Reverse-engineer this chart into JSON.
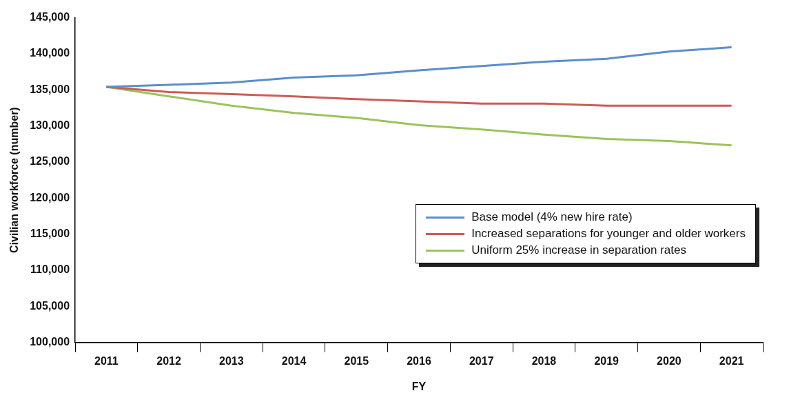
{
  "chart_data": {
    "type": "line",
    "xlabel": "FY",
    "ylabel": "Civilian workforce (number)",
    "categories": [
      "2011",
      "2012",
      "2013",
      "2014",
      "2015",
      "2016",
      "2017",
      "2018",
      "2019",
      "2020",
      "2021"
    ],
    "series": [
      {
        "name": "Base model (4% new hire rate)",
        "color": "#5b8fcb",
        "values": [
          135400,
          135700,
          136000,
          136700,
          137000,
          137700,
          138300,
          138900,
          139300,
          140300,
          140900
        ]
      },
      {
        "name": "Increased separations for younger and older workers",
        "color": "#cc5c56",
        "values": [
          135400,
          134700,
          134400,
          134100,
          133700,
          133400,
          133100,
          133100,
          132800,
          132800,
          132800
        ]
      },
      {
        "name": "Uniform 25% increase in separation rates",
        "color": "#9cc35c",
        "values": [
          135400,
          134100,
          132800,
          131800,
          131100,
          130100,
          129500,
          128800,
          128200,
          127900,
          127300
        ]
      }
    ],
    "ylim": [
      100000,
      145000
    ],
    "yticks": [
      {
        "value": 100000,
        "label": "100,000"
      },
      {
        "value": 105000,
        "label": "105,000"
      },
      {
        "value": 110000,
        "label": "110,000"
      },
      {
        "value": 115000,
        "label": "115,000"
      },
      {
        "value": 120000,
        "label": "120,000"
      },
      {
        "value": 125000,
        "label": "125,000"
      },
      {
        "value": 130000,
        "label": "130,000"
      },
      {
        "value": 135000,
        "label": "135,000"
      },
      {
        "value": 140000,
        "label": "140,000"
      },
      {
        "value": 145000,
        "label": "145,000"
      }
    ],
    "grid": false,
    "legend": "right",
    "marker": "none",
    "line_style": "solid"
  }
}
